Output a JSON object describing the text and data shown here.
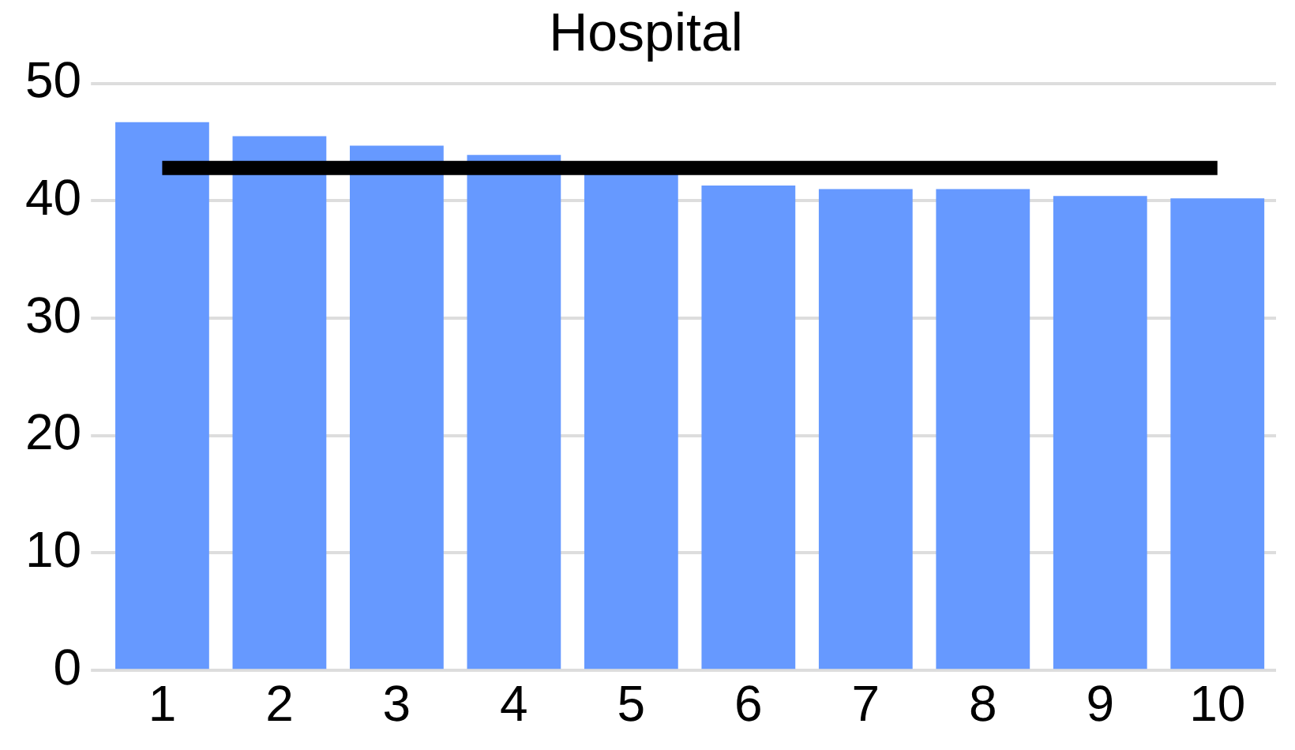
{
  "chart_data": {
    "type": "bar",
    "title": "Hospital",
    "categories": [
      "1",
      "2",
      "3",
      "4",
      "5",
      "6",
      "7",
      "8",
      "9",
      "10"
    ],
    "values": [
      46.7,
      45.5,
      44.7,
      43.9,
      42.6,
      41.3,
      41.0,
      41.0,
      40.4,
      40.2
    ],
    "color": "#6699ff",
    "ylim": [
      0,
      50
    ],
    "yticks": [
      0,
      10,
      20,
      30,
      40,
      50
    ],
    "grid": "y",
    "legend": false,
    "ref_lines": [
      {
        "axis": "y",
        "value": 42.8,
        "color": "#000000"
      }
    ]
  }
}
